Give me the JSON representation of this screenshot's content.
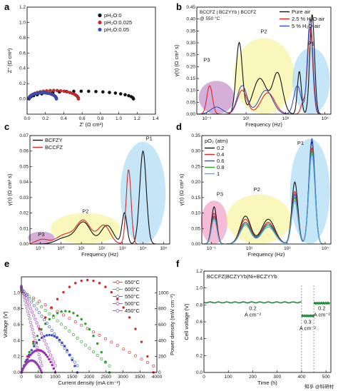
{
  "chart_data": [
    {
      "panel": "a",
      "type": "scatter",
      "xlabel": "Z' (Ω cm²)",
      "ylabel": "Z'' (Ω cm²)",
      "xlim": [
        0,
        1.4
      ],
      "ylim": [
        -0.2,
        1.2
      ],
      "xticks": [
        "0.0",
        "0.2",
        "0.4",
        "0.6",
        "0.8",
        "1.0",
        "1.2",
        "1.4"
      ],
      "yticks": [
        "0.0",
        "0.2",
        "0.4",
        "0.6",
        "0.8",
        "1.0",
        "1.2"
      ],
      "legend": [
        "pH₂O:0",
        "pH₂O:0.025",
        "pH₂O:0.05"
      ],
      "colors": [
        "#111111",
        "#d62728",
        "#3b4fc4"
      ],
      "series": [
        {
          "name": "pH₂O:0",
          "r0": 0.02,
          "r1": 1.16,
          "peak": 0.1
        },
        {
          "name": "pH₂O:0.025",
          "r0": 0.02,
          "r1": 0.56,
          "peak": 0.11
        },
        {
          "name": "pH₂O:0.05",
          "r0": 0.02,
          "r1": 0.32,
          "peak": 0.08
        }
      ]
    },
    {
      "panel": "b",
      "type": "line",
      "xlabel": "Frequency (Hz)",
      "ylabel": "γ(τ) (Ω cm² s)",
      "xlim_log10": [
        -1.5,
        5.3
      ],
      "ylim": [
        0,
        0.45
      ],
      "xticks": [
        "10⁻¹",
        "10¹",
        "10³",
        "10⁵"
      ],
      "yticks": [
        "0.00",
        "0.05",
        "0.10",
        "0.15",
        "0.20",
        "0.25",
        "0.30",
        "0.35",
        "0.40",
        "0.45"
      ],
      "annotation": [
        "BCCFZ | BCZYYb | BCCFZ",
        "@ 550 °C"
      ],
      "region_labels": [
        "P3",
        "P2",
        "P1"
      ],
      "legend": [
        "Pure air",
        "2.5 % H₂O-air",
        "5 % H₂O-air"
      ],
      "colors": [
        "#111111",
        "#d62728",
        "#3b4fc4"
      ],
      "series": [
        {
          "name": "Pure air",
          "peaks": [
            [
              0.65,
              0.3,
              0.16
            ],
            [
              1.7,
              0.15,
              0.35
            ],
            [
              2.6,
              0.17,
              0.25
            ],
            [
              3.7,
              0.18,
              0.1
            ],
            [
              4.35,
              0.42,
              0.12
            ]
          ]
        },
        {
          "name": "2.5 % H₂O-air",
          "peaks": [
            [
              -0.85,
              0.12,
              0.14
            ],
            [
              0.8,
              0.1,
              0.25
            ],
            [
              2.1,
              0.09,
              0.35
            ],
            [
              3.9,
              0.05,
              0.12
            ],
            [
              4.25,
              0.36,
              0.13
            ]
          ]
        },
        {
          "name": "5 % H₂O-air",
          "peaks": [
            [
              -0.5,
              0.03,
              0.3
            ],
            [
              0.8,
              0.12,
              0.25
            ],
            [
              2.0,
              0.1,
              0.35
            ],
            [
              3.6,
              0.12,
              0.18
            ],
            [
              4.25,
              0.4,
              0.14
            ]
          ]
        }
      ]
    },
    {
      "panel": "c",
      "type": "line",
      "xlabel": "Frequency (Hz)",
      "ylabel": "γ(τ) (Ω cm² s)",
      "xlim_log10": [
        -1.5,
        5.3
      ],
      "ylim": [
        0,
        0.07
      ],
      "xticks": [
        "10⁻¹",
        "10⁰",
        "10¹",
        "10²",
        "10³",
        "10⁴",
        "10⁵"
      ],
      "yticks": [
        "0.00",
        "0.01",
        "0.02",
        "0.03",
        "0.04",
        "0.05",
        "0.06",
        "0.07"
      ],
      "region_labels": [
        "P3",
        "P2",
        "P1"
      ],
      "legend": [
        "BCFZY",
        "BCCFZ"
      ],
      "colors": [
        "#111111",
        "#d62728"
      ],
      "series": [
        {
          "name": "BCFZY",
          "peaks": [
            [
              0.2,
              0.004,
              0.4
            ],
            [
              1.1,
              0.014,
              0.35
            ],
            [
              2.25,
              0.012,
              0.3
            ],
            [
              3.1,
              0.02,
              0.12
            ],
            [
              4.0,
              0.06,
              0.16
            ]
          ]
        },
        {
          "name": "BCCFZ",
          "peaks": [
            [
              -0.9,
              0.003,
              0.3
            ],
            [
              0.2,
              0.006,
              0.4
            ],
            [
              1.1,
              0.015,
              0.35
            ],
            [
              2.1,
              0.012,
              0.3
            ],
            [
              3.3,
              0.048,
              0.12
            ]
          ]
        }
      ]
    },
    {
      "panel": "d",
      "type": "line",
      "xlabel": "Frequency (Hz)",
      "ylabel": "γ(τ) (Ω cm² s)",
      "xlim_log10": [
        -1.5,
        5.3
      ],
      "ylim": [
        0,
        0.35
      ],
      "xticks": [
        "10⁻¹",
        "10¹",
        "10³",
        "10⁵"
      ],
      "yticks": [
        "0.00",
        "0.05",
        "0.10",
        "0.15",
        "0.20",
        "0.25",
        "0.30",
        "0.35"
      ],
      "legend_title": "pO₂ (atm)",
      "region_labels": [
        "P3",
        "P2",
        "P1"
      ],
      "legend": [
        "0.2",
        "0.4",
        "0.6",
        "0.8",
        "1"
      ],
      "colors": [
        "#111111",
        "#d62728",
        "#3b4fc4",
        "#2ca02c",
        "#5aa9e6"
      ],
      "series": [
        {
          "name": "0.2",
          "peaks": [
            [
              -0.85,
              0.12,
              0.14
            ],
            [
              0.8,
              0.09,
              0.28
            ],
            [
              2.0,
              0.08,
              0.35
            ],
            [
              3.4,
              0.2,
              0.16
            ],
            [
              4.3,
              0.33,
              0.16
            ]
          ]
        },
        {
          "name": "0.4",
          "peaks": [
            [
              -0.85,
              0.1,
              0.14
            ],
            [
              0.8,
              0.08,
              0.28
            ],
            [
              2.0,
              0.07,
              0.35
            ],
            [
              3.4,
              0.17,
              0.16
            ],
            [
              4.3,
              0.31,
              0.16
            ]
          ]
        },
        {
          "name": "0.6",
          "peaks": [
            [
              -0.85,
              0.09,
              0.14
            ],
            [
              0.8,
              0.07,
              0.28
            ],
            [
              2.0,
              0.065,
              0.35
            ],
            [
              3.4,
              0.16,
              0.16
            ],
            [
              4.3,
              0.34,
              0.16
            ]
          ]
        },
        {
          "name": "0.8",
          "peaks": [
            [
              -0.85,
              0.085,
              0.14
            ],
            [
              0.8,
              0.065,
              0.28
            ],
            [
              2.0,
              0.06,
              0.35
            ],
            [
              3.4,
              0.15,
              0.16
            ],
            [
              4.3,
              0.3,
              0.16
            ]
          ]
        },
        {
          "name": "1",
          "peaks": [
            [
              -0.85,
              0.08,
              0.14
            ],
            [
              0.8,
              0.06,
              0.28
            ],
            [
              2.0,
              0.055,
              0.35
            ],
            [
              3.4,
              0.14,
              0.16
            ],
            [
              4.3,
              0.29,
              0.16
            ]
          ]
        }
      ]
    },
    {
      "panel": "e",
      "type": "scatter",
      "xlabel": "Current density (mA cm⁻²)",
      "ylabel": "Voltage (V)",
      "y2label": "Power density (mW cm⁻²)",
      "xlim": [
        0,
        4000
      ],
      "ylim": [
        0,
        1.2
      ],
      "y2lim": [
        0,
        1200
      ],
      "xticks": [
        "0",
        "500",
        "1000",
        "1500",
        "2000",
        "2500",
        "3000",
        "3500",
        "4000"
      ],
      "yticks": [
        "0.0",
        "0.2",
        "0.4",
        "0.6",
        "0.8",
        "1.0"
      ],
      "y2ticks": [
        "0",
        "200",
        "400",
        "600",
        "800",
        "1000"
      ],
      "legend": [
        "650°C",
        "600°C",
        "550°C",
        "500°C",
        "450°C"
      ],
      "colors": [
        "#d62728",
        "#2ca02c",
        "#3b4fc4",
        "#9b27b0",
        "#8e44ad"
      ],
      "series": [
        {
          "name": "650°C",
          "ocv": 1.02,
          "jmax": 3900,
          "pmax": 1160
        },
        {
          "name": "600°C",
          "ocv": 1.04,
          "jmax": 2600,
          "pmax": 770
        },
        {
          "name": "550°C",
          "ocv": 1.06,
          "jmax": 1650,
          "pmax": 470
        },
        {
          "name": "500°C",
          "ocv": 1.07,
          "jmax": 1000,
          "pmax": 280
        },
        {
          "name": "450°C",
          "ocv": 1.08,
          "jmax": 600,
          "pmax": 150
        }
      ]
    },
    {
      "panel": "f",
      "type": "line",
      "xlabel": "Time (h)",
      "ylabel": "Cell voltage (V)",
      "xlim": [
        0,
        520
      ],
      "ylim": [
        0,
        1.2
      ],
      "xticks": [
        "0",
        "100",
        "200",
        "300",
        "400",
        "500"
      ],
      "yticks": [
        "0.0",
        "0.2",
        "0.4",
        "0.6",
        "0.8",
        "1.0",
        "1.2"
      ],
      "title": "BCCFZ|BCZYYb|Ni+BCZYYb",
      "segments": [
        {
          "t0": 0,
          "t1": 400,
          "v": 0.83,
          "label": "0.2"
        },
        {
          "t0": 400,
          "t1": 450,
          "v": 0.67,
          "label": "0.3"
        },
        {
          "t0": 450,
          "t1": 515,
          "v": 0.82,
          "label": "0.2"
        }
      ],
      "current_unit": "A cm⁻²",
      "color": "#1e8a3a"
    }
  ],
  "watermark": "知乎 @科研村"
}
